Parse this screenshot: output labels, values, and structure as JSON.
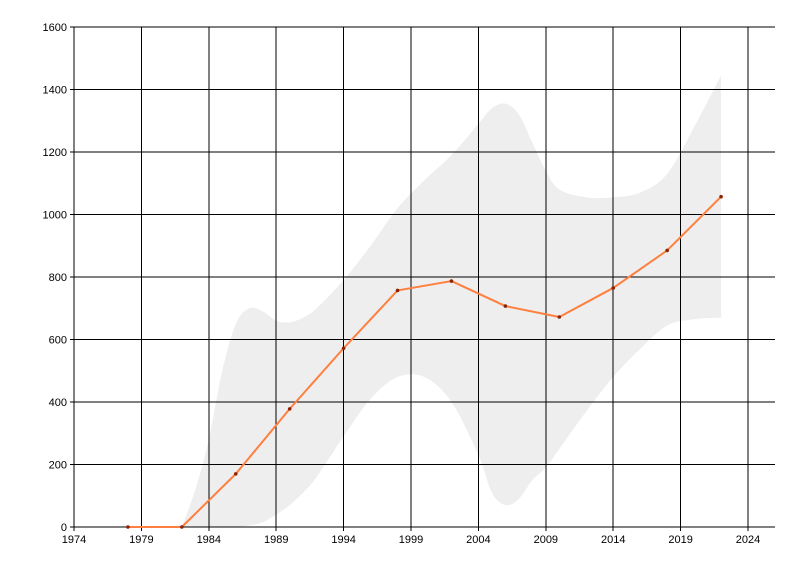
{
  "chart_data": {
    "type": "line",
    "title": "",
    "xlabel": "",
    "ylabel": "",
    "xlim": [
      1974,
      2026
    ],
    "ylim": [
      0,
      1600
    ],
    "x_ticks": [
      1974,
      1979,
      1984,
      1989,
      1994,
      1999,
      2004,
      2009,
      2014,
      2019,
      2024
    ],
    "y_ticks": [
      0,
      200,
      400,
      600,
      800,
      1000,
      1200,
      1400,
      1600
    ],
    "grid": true,
    "legend": "none",
    "series": [
      {
        "x": [
          1978,
          1982,
          1986,
          1990,
          1994,
          1998,
          2002,
          2006,
          2010,
          2014,
          2018,
          2022
        ],
        "values": [
          0,
          0,
          170,
          378,
          572,
          757,
          787,
          707,
          672,
          765,
          885,
          1057
        ],
        "color": "#ff7f3f",
        "marker_color": "#8b2500"
      }
    ],
    "band": {
      "x": [
        1982,
        1983,
        1984,
        1985,
        1986,
        1987,
        1988,
        1989,
        1990,
        1991,
        1992,
        1994,
        1996,
        1998,
        2000,
        2002,
        2004,
        2005,
        2006,
        2007,
        2008,
        2009,
        2010,
        2012,
        2014,
        2016,
        2018,
        2020,
        2022
      ],
      "upper": [
        0,
        120,
        280,
        500,
        650,
        700,
        690,
        660,
        655,
        670,
        700,
        790,
        900,
        1020,
        1110,
        1190,
        1290,
        1340,
        1355,
        1320,
        1230,
        1140,
        1080,
        1055,
        1055,
        1070,
        1130,
        1280,
        1445
      ],
      "lower": [
        0,
        0,
        0,
        0,
        0,
        5,
        15,
        40,
        70,
        110,
        160,
        290,
        410,
        480,
        480,
        400,
        230,
        110,
        70,
        90,
        150,
        190,
        250,
        370,
        480,
        570,
        645,
        665,
        670
      ],
      "color": "#eeeeee"
    }
  }
}
